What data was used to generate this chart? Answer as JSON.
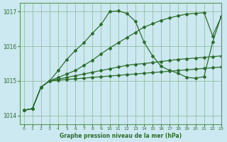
{
  "title": "Graphe pression niveau de la mer (hPa)",
  "bg_color": "#cce8f0",
  "grid_color": "#5a9a5a",
  "line_color": "#2d6e2d",
  "xlim": [
    -0.5,
    23
  ],
  "ylim": [
    1013.75,
    1017.25
  ],
  "yticks": [
    1014,
    1015,
    1016,
    1017
  ],
  "xticks": [
    0,
    1,
    2,
    3,
    4,
    5,
    6,
    7,
    8,
    9,
    10,
    11,
    12,
    13,
    14,
    15,
    16,
    17,
    18,
    19,
    20,
    21,
    22,
    23
  ],
  "line_flat1": [
    1014.15,
    1014.2,
    1014.82,
    1015.0,
    1015.02,
    1015.04,
    1015.06,
    1015.08,
    1015.1,
    1015.12,
    1015.14,
    1015.16,
    1015.18,
    1015.2,
    1015.22,
    1015.24,
    1015.26,
    1015.28,
    1015.3,
    1015.32,
    1015.34,
    1015.36,
    1015.38,
    1015.4
  ],
  "line_flat2": [
    1014.15,
    1014.2,
    1014.82,
    1015.0,
    1015.05,
    1015.1,
    1015.15,
    1015.2,
    1015.25,
    1015.3,
    1015.35,
    1015.4,
    1015.45,
    1015.48,
    1015.5,
    1015.53,
    1015.56,
    1015.59,
    1015.62,
    1015.64,
    1015.66,
    1015.68,
    1015.7,
    1015.72
  ],
  "line_rising": [
    1014.15,
    1014.2,
    1014.82,
    1015.0,
    1015.1,
    1015.2,
    1015.3,
    1015.45,
    1015.6,
    1015.78,
    1015.95,
    1016.1,
    1016.25,
    1016.4,
    1016.55,
    1016.65,
    1016.75,
    1016.82,
    1016.88,
    1016.93,
    1016.95,
    1016.97,
    1016.3,
    1016.85
  ],
  "line_bell": [
    1014.15,
    1014.2,
    1014.82,
    1015.0,
    1015.3,
    1015.62,
    1015.88,
    1016.1,
    1016.38,
    1016.63,
    1017.0,
    1017.02,
    1016.95,
    1016.72,
    1016.12,
    1015.72,
    1015.42,
    1015.3,
    1015.22,
    1015.1,
    1015.08,
    1015.12,
    1016.12,
    1016.87
  ]
}
